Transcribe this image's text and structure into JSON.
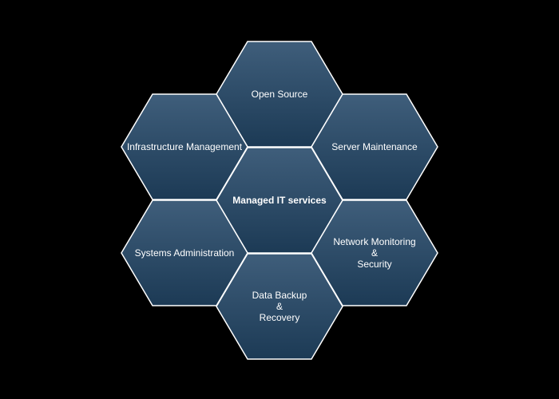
{
  "colors": {
    "background": "#000000",
    "hex_top": "#3f5e7b",
    "hex_bottom": "#1c3a55",
    "stroke": "#ffffff",
    "text": "#ffffff"
  },
  "diagram": {
    "center": {
      "lines": [
        "Managed IT services"
      ]
    },
    "top": {
      "lines": [
        "Open Source"
      ]
    },
    "upper_left": {
      "lines": [
        "Infrastructure Management"
      ]
    },
    "upper_right": {
      "lines": [
        "Server Maintenance"
      ]
    },
    "lower_left": {
      "lines": [
        "Systems Administration"
      ]
    },
    "lower_right": {
      "lines": [
        "Network Monitoring",
        "&",
        "Security"
      ]
    },
    "bottom": {
      "lines": [
        "Data Backup",
        "&",
        "Recovery"
      ]
    }
  }
}
